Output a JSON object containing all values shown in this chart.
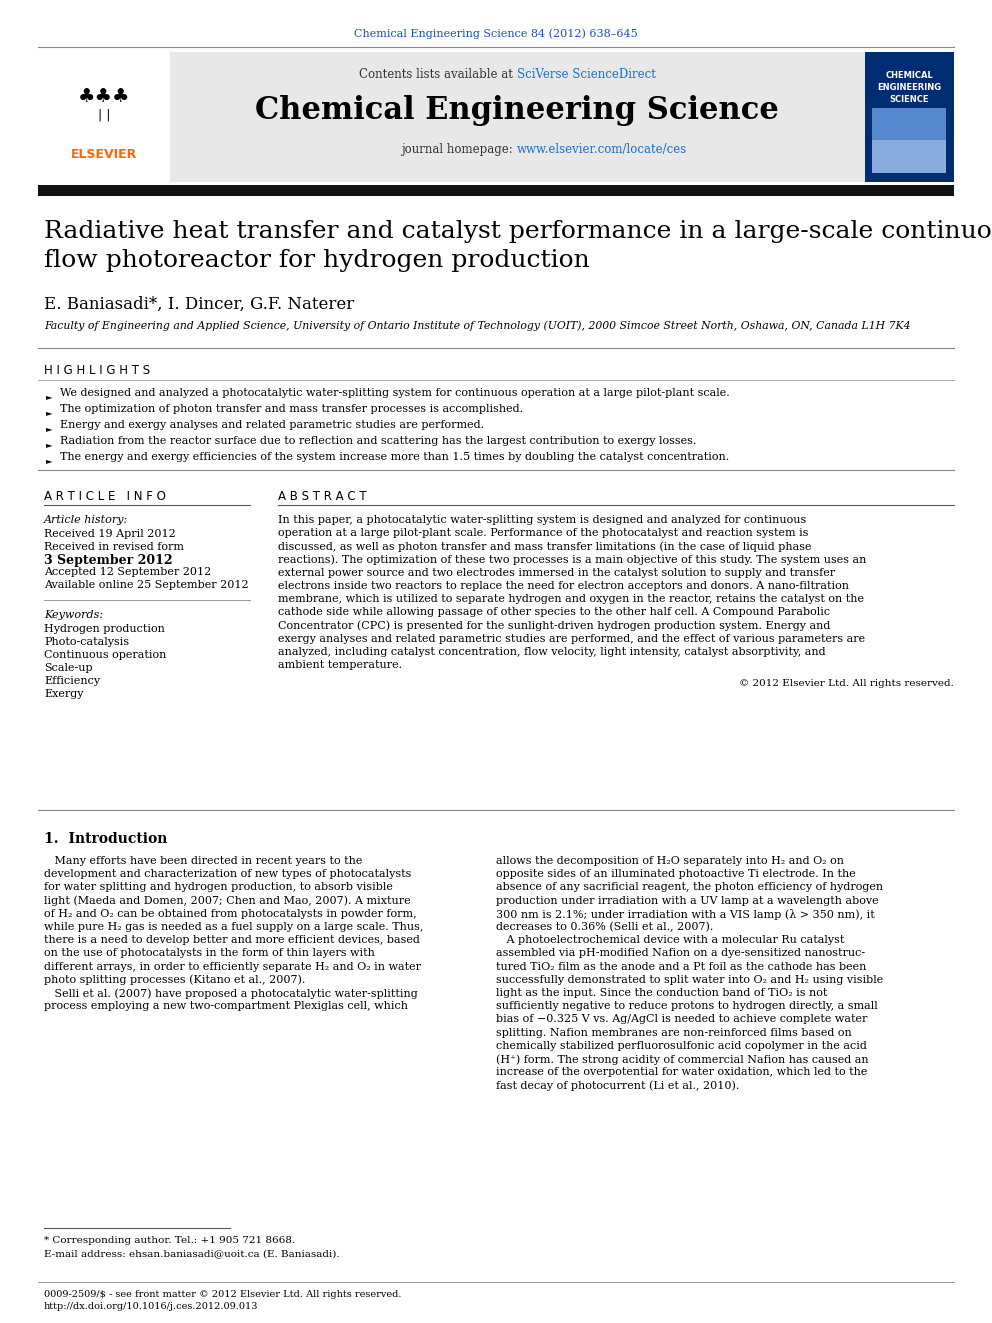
{
  "journal_ref": "Chemical Engineering Science 84 (2012) 638–645",
  "journal_name": "Chemical Engineering Science",
  "contents_line": "Contents lists available at SciVerse ScienceDirect",
  "homepage_line": "journal homepage: www.elsevier.com/locate/ces",
  "title": "Radiative heat transfer and catalyst performance in a large-scale continuous\nflow photoreactor for hydrogen production",
  "authors": "E. Baniasadi*, I. Dincer, G.F. Naterer",
  "affiliation": "Faculty of Engineering and Applied Science, University of Ontario Institute of Technology (UOIT), 2000 Simcoe Street North, Oshawa, ON, Canada L1H 7K4",
  "highlights_title": "H I G H L I G H T S",
  "highlights": [
    "We designed and analyzed a photocatalytic water-splitting system for continuous operation at a large pilot-plant scale.",
    "The optimization of photon transfer and mass transfer processes is accomplished.",
    "Energy and exergy analyses and related parametric studies are performed.",
    "Radiation from the reactor surface due to reflection and scattering has the largest contribution to exergy losses.",
    "The energy and exergy efficiencies of the system increase more than 1.5 times by doubling the catalyst concentration."
  ],
  "article_info_title": "A R T I C L E   I N F O",
  "abstract_title": "A B S T R A C T",
  "article_history_label": "Article history:",
  "received": "Received 19 April 2012",
  "revised1": "Received in revised form",
  "revised2": "3 September 2012",
  "accepted": "Accepted 12 September 2012",
  "online": "Available online 25 September 2012",
  "keywords_label": "Keywords:",
  "keywords": [
    "Hydrogen production",
    "Photo-catalysis",
    "Continuous operation",
    "Scale-up",
    "Efficiency",
    "Exergy"
  ],
  "abstract_lines": [
    "In this paper, a photocatalytic water-splitting system is designed and analyzed for continuous",
    "operation at a large pilot-plant scale. Performance of the photocatalyst and reaction system is",
    "discussed, as well as photon transfer and mass transfer limitations (in the case of liquid phase",
    "reactions). The optimization of these two processes is a main objective of this study. The system uses an",
    "external power source and two electrodes immersed in the catalyst solution to supply and transfer",
    "electrons inside two reactors to replace the need for electron acceptors and donors. A nano-filtration",
    "membrane, which is utilized to separate hydrogen and oxygen in the reactor, retains the catalyst on the",
    "cathode side while allowing passage of other species to the other half cell. A Compound Parabolic",
    "Concentrator (CPC) is presented for the sunlight-driven hydrogen production system. Energy and",
    "exergy analyses and related parametric studies are performed, and the effect of various parameters are",
    "analyzed, including catalyst concentration, flow velocity, light intensity, catalyst absorptivity, and",
    "ambient temperature."
  ],
  "copyright": "© 2012 Elsevier Ltd. All rights reserved.",
  "section1_title": "1.  Introduction",
  "intro_col1_lines": [
    "   Many efforts have been directed in recent years to the",
    "development and characterization of new types of photocatalysts",
    "for water splitting and hydrogen production, to absorb visible",
    "light (Maeda and Domen, 2007; Chen and Mao, 2007). A mixture",
    "of H₂ and O₂ can be obtained from photocatalysts in powder form,",
    "while pure H₂ gas is needed as a fuel supply on a large scale. Thus,",
    "there is a need to develop better and more efficient devices, based",
    "on the use of photocatalysts in the form of thin layers with",
    "different arrays, in order to efficiently separate H₂ and O₂ in water",
    "photo splitting processes (Kitano et al., 2007).",
    "   Selli et al. (2007) have proposed a photocatalytic water-splitting",
    "process employing a new two-compartment Plexiglas cell, which"
  ],
  "intro_col2_lines": [
    "allows the decomposition of H₂O separately into H₂ and O₂ on",
    "opposite sides of an illuminated photoactive Ti electrode. In the",
    "absence of any sacrificial reagent, the photon efficiency of hydrogen",
    "production under irradiation with a UV lamp at a wavelength above",
    "300 nm is 2.1%; under irradiation with a VIS lamp (λ > 350 nm), it",
    "decreases to 0.36% (Selli et al., 2007).",
    "   A photoelectrochemical device with a molecular Ru catalyst",
    "assembled via pH-modified Nafion on a dye-sensitized nanostruc-",
    "tured TiO₂ film as the anode and a Pt foil as the cathode has been",
    "successfully demonstrated to split water into O₂ and H₂ using visible",
    "light as the input. Since the conduction band of TiO₂ is not",
    "sufficiently negative to reduce protons to hydrogen directly, a small",
    "bias of −0.325 V vs. Ag/AgCl is needed to achieve complete water",
    "splitting. Nafion membranes are non-reinforced films based on",
    "chemically stabilized perfluorosulfonic acid copolymer in the acid",
    "(H⁺) form. The strong acidity of commercial Nafion has caused an",
    "increase of the overpotential for water oxidation, which led to the",
    "fast decay of photocurrent (Li et al., 2010)."
  ],
  "footnote1": "* Corresponding author. Tel.: +1 905 721 8668.",
  "footnote2": "E-mail address: ehsan.baniasadi@uoit.ca (E. Baniasadi).",
  "footnote3": "0009-2509/$ - see front matter © 2012 Elsevier Ltd. All rights reserved.",
  "footnote4": "http://dx.doi.org/10.1016/j.ces.2012.09.013",
  "bg_header": "#e8e8e8",
  "blue_color": "#1a4cc0",
  "orange_color": "#FF6600",
  "dark_navy": "#003080",
  "elsevier_orange": "#FF6600",
  "link_blue": "#1a6fc4"
}
